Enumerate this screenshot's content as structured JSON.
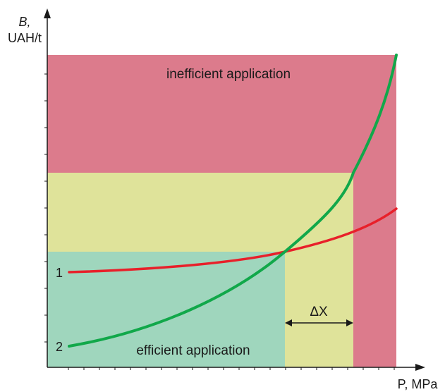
{
  "axes": {
    "y_label_line1": "B,",
    "y_label_line2": "UAH/t",
    "x_label": "P, MPa"
  },
  "regions": {
    "inefficient_label": "inefficient application",
    "efficient_label": "efficient application",
    "delta_label": "ΔX"
  },
  "curves": {
    "curve_1_label": "1",
    "curve_2_label": "2"
  },
  "colors": {
    "inefficient": "#dc7b8c",
    "intermediate": "#dfe39a",
    "efficient": "#9fd6bd",
    "curve_1": "#e8202a",
    "curve_2": "#11a84a",
    "axis": "#1a1a1a"
  }
}
